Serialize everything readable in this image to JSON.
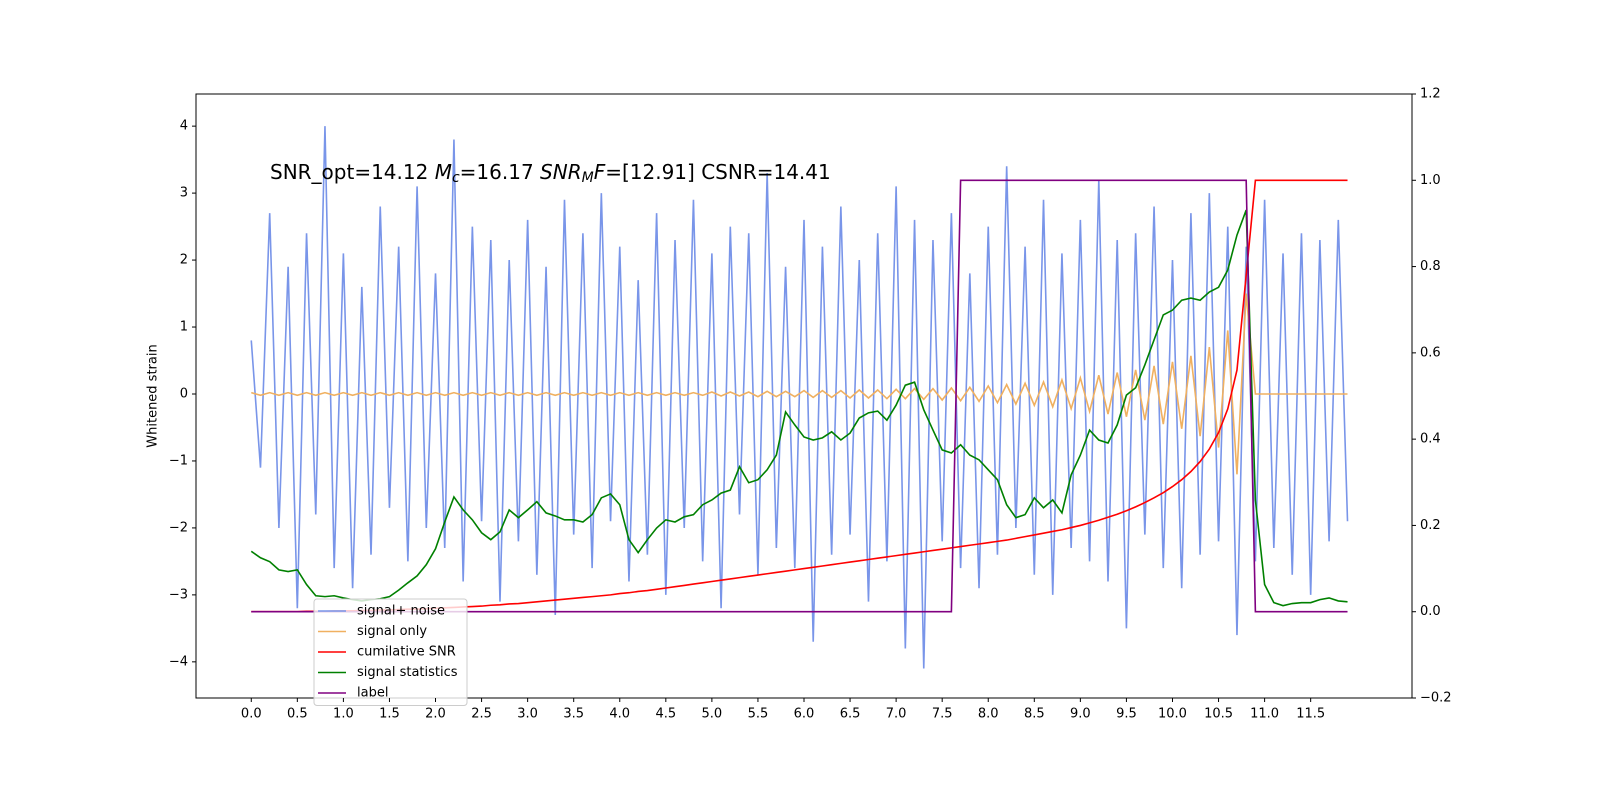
{
  "chart_data": {
    "type": "line",
    "annotation": [
      "SNR_opt=14.12 ",
      "M",
      "c",
      "=16.17 ",
      "SNR",
      "M",
      "F",
      "=[12.91] CSNR=14.41"
    ],
    "y_label": "Whitened strain",
    "xlim": [
      -0.6,
      12.6
    ],
    "ylim": [
      -4.54,
      4.48
    ],
    "y2lim": [
      -0.2,
      1.2
    ],
    "xticks": [
      {
        "value": 0,
        "label": "0.0"
      },
      0.5,
      {
        "value": 1,
        "label": "1.0"
      },
      1.5,
      {
        "value": 2,
        "label": "2.0"
      },
      2.5,
      {
        "value": 3,
        "label": "3.0"
      },
      3.5,
      {
        "value": 4,
        "label": "4.0"
      },
      4.5,
      {
        "value": 5,
        "label": "5.0"
      },
      5.5,
      {
        "value": 6,
        "label": "6.0"
      },
      6.5,
      {
        "value": 7,
        "label": "7.0"
      },
      7.5,
      {
        "value": 8,
        "label": "8.0"
      },
      8.5,
      {
        "value": 9,
        "label": "9.0"
      },
      9.5,
      {
        "value": 10,
        "label": "10.0"
      },
      10.5,
      {
        "value": 11,
        "label": "11.0"
      },
      11.5
    ],
    "yticks": [
      {
        "value": -4,
        "label": "−4"
      },
      {
        "value": -3,
        "label": "−3"
      },
      {
        "value": -2,
        "label": "−2"
      },
      {
        "value": -1,
        "label": "−1"
      },
      0,
      1,
      2,
      3,
      4
    ],
    "y2ticks": [
      {
        "value": -0.2,
        "label": "−0.2"
      },
      {
        "value": 0,
        "label": "0.0"
      },
      0.2,
      0.4,
      0.6,
      0.8,
      {
        "value": 1,
        "label": "1.0"
      },
      1.2
    ],
    "legend": "lower left",
    "x": [
      0,
      0.1,
      0.2,
      0.3,
      0.4,
      0.5,
      0.6,
      0.7,
      0.8,
      0.9,
      1,
      1.1,
      1.2,
      1.3,
      1.4,
      1.5,
      1.6,
      1.7,
      1.8,
      1.9,
      2,
      2.1,
      2.2,
      2.3,
      2.4,
      2.5,
      2.6,
      2.7,
      2.8,
      2.9,
      3,
      3.1,
      3.2,
      3.3,
      3.4,
      3.5,
      3.6,
      3.7,
      3.8,
      3.9,
      4,
      4.1,
      4.2,
      4.3,
      4.4,
      4.5,
      4.6,
      4.7,
      4.8,
      4.9,
      5,
      5.1,
      5.2,
      5.3,
      5.4,
      5.5,
      5.6,
      5.7,
      5.8,
      5.9,
      6,
      6.1,
      6.2,
      6.3,
      6.4,
      6.5,
      6.6,
      6.7,
      6.8,
      6.9,
      7,
      7.1,
      7.2,
      7.3,
      7.4,
      7.5,
      7.6,
      7.7,
      7.8,
      7.9,
      8,
      8.1,
      8.2,
      8.3,
      8.4,
      8.5,
      8.6,
      8.7,
      8.8,
      8.9,
      9,
      9.1,
      9.2,
      9.3,
      9.4,
      9.5,
      9.6,
      9.7,
      9.8,
      9.9,
      10,
      10.1,
      10.2,
      10.3,
      10.4,
      10.5,
      10.6,
      10.7,
      10.8,
      10.9,
      11,
      11.1,
      11.2,
      11.3,
      11.4,
      11.5,
      11.6,
      11.7,
      11.8,
      11.9
    ],
    "series": [
      {
        "name": "signal+ noise",
        "color": "#7995e9",
        "axis": "y",
        "values": [
          0.8,
          -1.1,
          2.7,
          -2.0,
          1.9,
          -3.2,
          2.4,
          -1.8,
          4.0,
          -2.6,
          2.1,
          -2.9,
          1.6,
          -2.4,
          2.8,
          -1.7,
          2.2,
          -2.5,
          3.1,
          -2.0,
          1.8,
          -2.3,
          3.8,
          -2.8,
          2.5,
          -1.9,
          2.3,
          -3.1,
          2.0,
          -2.2,
          2.6,
          -2.7,
          1.9,
          -3.3,
          2.9,
          -2.1,
          2.4,
          -2.6,
          3.0,
          -1.9,
          2.2,
          -2.8,
          1.7,
          -2.4,
          2.7,
          -3.0,
          2.3,
          -2.0,
          2.9,
          -2.5,
          2.1,
          -3.2,
          2.5,
          -1.8,
          2.4,
          -2.7,
          3.3,
          -2.3,
          1.9,
          -2.6,
          2.6,
          -3.7,
          2.2,
          -2.4,
          2.8,
          -2.1,
          2.0,
          -3.1,
          2.4,
          -2.5,
          3.1,
          -3.8,
          2.6,
          -4.1,
          2.3,
          -2.2,
          2.7,
          -2.6,
          1.8,
          -2.9,
          2.5,
          -2.4,
          3.4,
          -2.0,
          2.2,
          -2.7,
          2.9,
          -3.0,
          2.1,
          -2.3,
          2.6,
          -2.5,
          3.2,
          -2.8,
          2.3,
          -3.5,
          2.4,
          -2.1,
          2.8,
          -2.6,
          2.0,
          -2.9,
          2.7,
          -2.4,
          3.0,
          -2.2,
          2.5,
          -3.6,
          2.2,
          -2.5,
          2.9,
          -2.3,
          2.1,
          -2.7,
          2.4,
          -3.0,
          2.3,
          -2.2,
          2.6,
          -1.9
        ]
      },
      {
        "name": "signal only",
        "color": "#f0b060",
        "axis": "y",
        "values": [
          0.02,
          -0.02,
          0.02,
          -0.02,
          0.02,
          -0.02,
          0.02,
          -0.02,
          0.02,
          -0.02,
          0.02,
          -0.02,
          0.02,
          -0.02,
          0.02,
          -0.02,
          0.02,
          -0.02,
          0.02,
          -0.02,
          0.02,
          -0.02,
          0.02,
          -0.02,
          0.02,
          -0.02,
          0.02,
          -0.02,
          0.02,
          -0.02,
          0.02,
          -0.02,
          0.02,
          -0.02,
          0.02,
          -0.02,
          0.02,
          -0.02,
          0.02,
          -0.02,
          0.02,
          -0.02,
          0.02,
          -0.02,
          0.02,
          -0.02,
          0.02,
          -0.02,
          0.02,
          -0.02,
          0.03,
          -0.03,
          0.03,
          -0.03,
          0.03,
          -0.04,
          0.04,
          -0.04,
          0.04,
          -0.04,
          0.05,
          -0.05,
          0.05,
          -0.05,
          0.05,
          -0.06,
          0.06,
          -0.06,
          0.06,
          -0.07,
          0.07,
          -0.07,
          0.08,
          -0.08,
          0.08,
          -0.09,
          0.09,
          -0.1,
          0.1,
          -0.11,
          0.12,
          -0.13,
          0.14,
          -0.15,
          0.16,
          -0.17,
          0.18,
          -0.19,
          0.21,
          -0.22,
          0.24,
          -0.26,
          0.28,
          -0.3,
          0.32,
          -0.34,
          0.36,
          -0.39,
          0.42,
          -0.45,
          0.48,
          -0.52,
          0.57,
          -0.63,
          0.7,
          -0.8,
          0.95,
          -1.2,
          1.5,
          0,
          0,
          0,
          0,
          0,
          0,
          0,
          0,
          0,
          0,
          0
        ]
      },
      {
        "name": "cumilative SNR",
        "color": "#ff0000",
        "axis": "y2",
        "values": [
          0,
          0,
          0,
          0,
          0,
          0,
          0.001,
          0.001,
          0.001,
          0.002,
          0.002,
          0.002,
          0.003,
          0.003,
          0.004,
          0.004,
          0.005,
          0.006,
          0.006,
          0.007,
          0.008,
          0.009,
          0.01,
          0.011,
          0.012,
          0.013,
          0.015,
          0.016,
          0.018,
          0.019,
          0.021,
          0.023,
          0.025,
          0.027,
          0.029,
          0.031,
          0.033,
          0.035,
          0.037,
          0.039,
          0.042,
          0.044,
          0.047,
          0.049,
          0.052,
          0.055,
          0.058,
          0.061,
          0.064,
          0.067,
          0.07,
          0.073,
          0.076,
          0.079,
          0.082,
          0.085,
          0.088,
          0.091,
          0.094,
          0.097,
          0.1,
          0.103,
          0.106,
          0.109,
          0.112,
          0.115,
          0.118,
          0.121,
          0.124,
          0.127,
          0.13,
          0.133,
          0.136,
          0.139,
          0.142,
          0.145,
          0.148,
          0.151,
          0.154,
          0.157,
          0.16,
          0.163,
          0.166,
          0.17,
          0.174,
          0.178,
          0.182,
          0.186,
          0.19,
          0.195,
          0.2,
          0.206,
          0.212,
          0.219,
          0.226,
          0.234,
          0.243,
          0.253,
          0.264,
          0.276,
          0.29,
          0.306,
          0.325,
          0.348,
          0.377,
          0.415,
          0.47,
          0.56,
          0.78,
          1,
          1,
          1,
          1,
          1,
          1,
          1,
          1,
          1,
          1,
          1
        ]
      },
      {
        "name": "signal statistics",
        "color": "#008000",
        "axis": "y2",
        "values": [
          0.14,
          0.125,
          0.116,
          0.097,
          0.093,
          0.097,
          0.063,
          0.037,
          0.035,
          0.037,
          0.032,
          0.028,
          0.025,
          0.028,
          0.03,
          0.035,
          0.05,
          0.067,
          0.083,
          0.109,
          0.146,
          0.208,
          0.266,
          0.236,
          0.213,
          0.183,
          0.167,
          0.185,
          0.236,
          0.218,
          0.236,
          0.255,
          0.229,
          0.222,
          0.213,
          0.213,
          0.208,
          0.225,
          0.264,
          0.273,
          0.248,
          0.167,
          0.137,
          0.167,
          0.194,
          0.213,
          0.208,
          0.22,
          0.225,
          0.248,
          0.259,
          0.275,
          0.282,
          0.336,
          0.299,
          0.306,
          0.329,
          0.363,
          0.463,
          0.433,
          0.405,
          0.398,
          0.403,
          0.417,
          0.398,
          0.414,
          0.449,
          0.461,
          0.465,
          0.444,
          0.479,
          0.525,
          0.532,
          0.468,
          0.421,
          0.375,
          0.368,
          0.387,
          0.363,
          0.352,
          0.329,
          0.306,
          0.248,
          0.218,
          0.225,
          0.264,
          0.241,
          0.259,
          0.229,
          0.317,
          0.363,
          0.421,
          0.398,
          0.391,
          0.433,
          0.502,
          0.519,
          0.572,
          0.63,
          0.688,
          0.699,
          0.722,
          0.727,
          0.722,
          0.741,
          0.752,
          0.792,
          0.873,
          0.931,
          0.259,
          0.063,
          0.021,
          0.014,
          0.019,
          0.021,
          0.021,
          0.028,
          0.032,
          0.025,
          0.023
        ]
      },
      {
        "name": "label",
        "color": "#800080",
        "axis": "y2",
        "values": [
          0,
          0,
          0,
          0,
          0,
          0,
          0,
          0,
          0,
          0,
          0,
          0,
          0,
          0,
          0,
          0,
          0,
          0,
          0,
          0,
          0,
          0,
          0,
          0,
          0,
          0,
          0,
          0,
          0,
          0,
          0,
          0,
          0,
          0,
          0,
          0,
          0,
          0,
          0,
          0,
          0,
          0,
          0,
          0,
          0,
          0,
          0,
          0,
          0,
          0,
          0,
          0,
          0,
          0,
          0,
          0,
          0,
          0,
          0,
          0,
          0,
          0,
          0,
          0,
          0,
          0,
          0,
          0,
          0,
          0,
          0,
          0,
          0,
          0,
          0,
          0,
          0,
          1,
          1,
          1,
          1,
          1,
          1,
          1,
          1,
          1,
          1,
          1,
          1,
          1,
          1,
          1,
          1,
          1,
          1,
          1,
          1,
          1,
          1,
          1,
          1,
          1,
          1,
          1,
          1,
          1,
          1,
          1,
          1,
          0,
          0,
          0,
          0,
          0,
          0,
          0,
          0,
          0,
          0,
          0
        ]
      }
    ]
  }
}
